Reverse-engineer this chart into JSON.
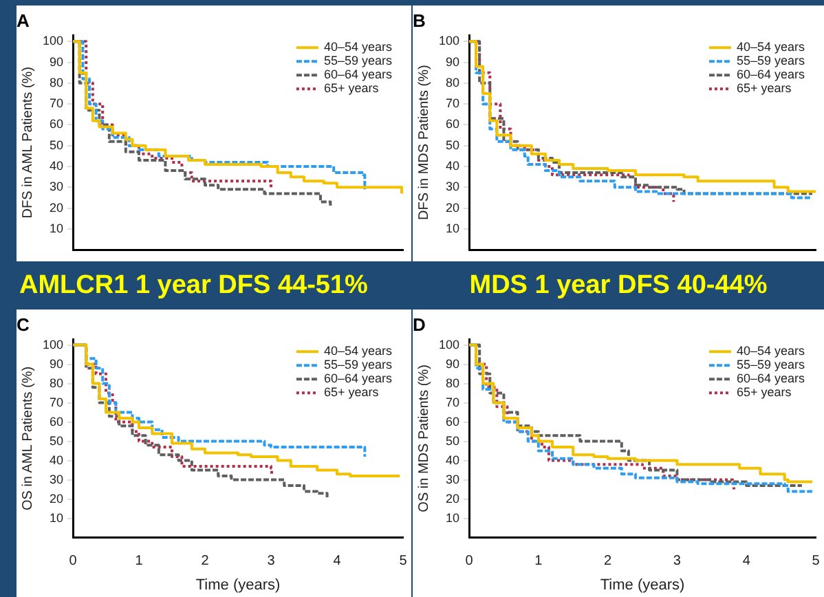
{
  "chart_data": [
    {
      "type": "step",
      "title": "A",
      "ylabel": "DFS in AML Patients (%)",
      "annotations": [
        "AMLCR1 1 year DFS 44-51%"
      ],
      "xlim": [
        0,
        5
      ],
      "xticks": [
        0,
        1,
        2,
        3,
        4,
        5
      ],
      "ylim": [
        0,
        103
      ],
      "yticks": [
        10,
        20,
        30,
        40,
        50,
        60,
        70,
        80,
        90,
        100
      ],
      "tick_labels": "y",
      "legend": "top right",
      "series": [
        {
          "name": "40–54 years",
          "color": "#f2c200",
          "line_style": "solid",
          "x": [
            0,
            0.1,
            0.2,
            0.3,
            0.4,
            0.6,
            0.8,
            0.9,
            1.1,
            1.4,
            1.75,
            2.0,
            2.85,
            3.1,
            3.3,
            3.5,
            3.8,
            4.0,
            4.97,
            4.98
          ],
          "values": [
            100,
            85,
            68,
            62,
            59,
            56,
            53,
            50,
            48,
            45,
            43,
            41,
            40,
            37,
            35,
            33,
            32,
            30,
            30,
            27
          ]
        },
        {
          "name": "55–59 years",
          "color": "#2e9df0",
          "line_style": "dashed",
          "x": [
            0,
            0.15,
            0.25,
            0.35,
            0.45,
            0.6,
            0.85,
            1.0,
            1.3,
            1.8,
            2.0,
            2.95,
            3.95,
            4.4,
            4.42
          ],
          "values": [
            100,
            82,
            70,
            62,
            58,
            54,
            50,
            48,
            45,
            43,
            42,
            40,
            37,
            36,
            29
          ]
        },
        {
          "name": "60–64 years",
          "color": "#5f5f5f",
          "line_style": "dashed",
          "x": [
            0,
            0.1,
            0.2,
            0.4,
            0.55,
            0.8,
            1.0,
            1.4,
            1.7,
            2.0,
            2.2,
            2.9,
            3.75,
            3.9
          ],
          "values": [
            100,
            80,
            67,
            60,
            52,
            47,
            43,
            38,
            34,
            31,
            29,
            27,
            23,
            21
          ]
        },
        {
          "name": "65+ years",
          "color": "#b0304a",
          "line_style": "dotted",
          "x": [
            0,
            0.2,
            0.3,
            0.45,
            0.6,
            0.8,
            1.0,
            1.2,
            1.5,
            1.65,
            1.8,
            3.0
          ],
          "values": [
            100,
            80,
            70,
            60,
            55,
            50,
            46,
            44,
            42,
            37,
            33,
            30
          ]
        }
      ]
    },
    {
      "type": "step",
      "title": "B",
      "ylabel": "DFS in MDS Patients (%)",
      "annotations": [
        "MDS 1 year DFS 40-44%"
      ],
      "xlim": [
        0,
        5
      ],
      "xticks": [
        0,
        1,
        2,
        3,
        4,
        5
      ],
      "ylim": [
        0,
        103
      ],
      "yticks": [
        10,
        20,
        30,
        40,
        50,
        60,
        70,
        80,
        90,
        100
      ],
      "tick_labels": "y",
      "legend": "top right",
      "series": [
        {
          "name": "40–54 years",
          "color": "#f2c200",
          "line_style": "solid",
          "x": [
            0,
            0.1,
            0.2,
            0.3,
            0.4,
            0.6,
            0.9,
            1.1,
            1.3,
            1.5,
            2.0,
            2.4,
            3.1,
            3.3,
            4.4,
            4.6,
            5.0
          ],
          "values": [
            100,
            88,
            75,
            62,
            55,
            50,
            46,
            43,
            41,
            39,
            38,
            36,
            35,
            33,
            30,
            28,
            28
          ]
        },
        {
          "name": "55–59 years",
          "color": "#2e9df0",
          "line_style": "dashed",
          "x": [
            0,
            0.1,
            0.2,
            0.3,
            0.4,
            0.6,
            0.8,
            0.85,
            1.1,
            1.3,
            1.6,
            2.1,
            2.4,
            2.7,
            4.6,
            4.65,
            4.95
          ],
          "values": [
            100,
            85,
            70,
            58,
            52,
            48,
            45,
            41,
            38,
            35,
            33,
            30,
            28,
            27,
            27,
            25,
            25
          ]
        },
        {
          "name": "60–64 years",
          "color": "#5f5f5f",
          "line_style": "dashed",
          "x": [
            0,
            0.15,
            0.3,
            0.5,
            0.7,
            1.0,
            1.2,
            1.3,
            2.2,
            2.4,
            2.6,
            3.0,
            3.1,
            4.95
          ],
          "values": [
            100,
            80,
            63,
            52,
            48,
            44,
            42,
            37,
            35,
            31,
            30,
            29,
            27,
            27
          ]
        },
        {
          "name": "65+ years",
          "color": "#b0304a",
          "line_style": "dotted",
          "x": [
            0,
            0.15,
            0.3,
            0.45,
            0.6,
            0.8,
            1.0,
            1.1,
            1.2,
            2.3,
            2.4,
            2.8,
            2.95
          ],
          "values": [
            100,
            85,
            70,
            58,
            50,
            48,
            43,
            40,
            36,
            35,
            30,
            27,
            23
          ]
        }
      ]
    },
    {
      "type": "step",
      "title": "C",
      "xlabel": "Time (years)",
      "ylabel": "OS in AML Patients (%)",
      "xlim": [
        0,
        5
      ],
      "xticks": [
        0,
        1,
        2,
        3,
        4,
        5
      ],
      "ylim": [
        0,
        103
      ],
      "yticks": [
        10,
        20,
        30,
        40,
        50,
        60,
        70,
        80,
        90,
        100
      ],
      "legend": "top right",
      "series": [
        {
          "name": "40–54 years",
          "color": "#f2c200",
          "line_style": "solid",
          "x": [
            0,
            0.2,
            0.3,
            0.4,
            0.5,
            0.7,
            0.9,
            1.0,
            1.2,
            1.5,
            1.8,
            2.0,
            2.5,
            2.7,
            3.1,
            3.3,
            3.7,
            4.0,
            4.2,
            4.95
          ],
          "values": [
            100,
            90,
            80,
            72,
            65,
            62,
            60,
            57,
            54,
            49,
            46,
            44,
            43,
            42,
            40,
            37,
            35,
            33,
            32,
            32
          ]
        },
        {
          "name": "55–59 years",
          "color": "#2e9df0",
          "line_style": "dashed",
          "x": [
            0,
            0.2,
            0.35,
            0.45,
            0.55,
            0.65,
            0.9,
            1.0,
            1.2,
            1.35,
            1.6,
            2.9,
            3.0,
            4.4,
            4.42
          ],
          "values": [
            100,
            93,
            88,
            80,
            70,
            65,
            62,
            60,
            56,
            52,
            50,
            48,
            47,
            47,
            42
          ]
        },
        {
          "name": "60–64 years",
          "color": "#5f5f5f",
          "line_style": "dashed",
          "x": [
            0,
            0.2,
            0.3,
            0.4,
            0.55,
            0.7,
            0.9,
            1.1,
            1.3,
            1.6,
            1.8,
            2.2,
            2.4,
            3.0,
            3.2,
            3.5,
            3.7,
            3.85
          ],
          "values": [
            100,
            88,
            78,
            70,
            63,
            58,
            53,
            48,
            43,
            40,
            35,
            32,
            30,
            30,
            27,
            24,
            23,
            20
          ]
        },
        {
          "name": "65+ years",
          "color": "#b0304a",
          "line_style": "dotted",
          "x": [
            0,
            0.2,
            0.35,
            0.5,
            0.6,
            0.65,
            0.9,
            1.0,
            1.2,
            1.5,
            1.65,
            3.0,
            3.01
          ],
          "values": [
            100,
            90,
            85,
            75,
            70,
            60,
            55,
            50,
            47,
            42,
            37,
            36,
            33
          ]
        }
      ]
    },
    {
      "type": "step",
      "title": "D",
      "xlabel": "Time (years)",
      "ylabel": "OS in MDS Patients (%)",
      "xlim": [
        0,
        5
      ],
      "xticks": [
        0,
        1,
        2,
        3,
        4,
        5
      ],
      "ylim": [
        0,
        103
      ],
      "yticks": [
        10,
        20,
        30,
        40,
        50,
        60,
        70,
        80,
        90,
        100
      ],
      "legend": "top right",
      "series": [
        {
          "name": "40–54 years",
          "color": "#f2c200",
          "line_style": "solid",
          "x": [
            0,
            0.1,
            0.2,
            0.35,
            0.5,
            0.7,
            0.9,
            1.0,
            1.2,
            1.5,
            1.8,
            2.0,
            2.4,
            3.0,
            3.9,
            4.2,
            4.55,
            4.6,
            4.95
          ],
          "values": [
            100,
            90,
            80,
            70,
            62,
            57,
            53,
            50,
            47,
            43,
            42,
            41,
            40,
            38,
            36,
            33,
            30,
            29,
            29
          ]
        },
        {
          "name": "55–59 years",
          "color": "#2e9df0",
          "line_style": "dashed",
          "x": [
            0,
            0.1,
            0.2,
            0.35,
            0.5,
            0.7,
            0.85,
            1.0,
            1.2,
            1.5,
            1.8,
            2.2,
            2.4,
            3.0,
            3.3,
            4.55,
            4.6,
            4.95
          ],
          "values": [
            100,
            88,
            77,
            70,
            60,
            55,
            50,
            45,
            41,
            38,
            36,
            33,
            31,
            29,
            28,
            27,
            24,
            24
          ]
        },
        {
          "name": "60–64 years",
          "color": "#5f5f5f",
          "line_style": "dashed",
          "x": [
            0,
            0.15,
            0.3,
            0.5,
            0.7,
            0.9,
            1.0,
            1.6,
            2.2,
            2.3,
            2.6,
            3.0,
            3.5,
            4.0,
            4.8
          ],
          "values": [
            100,
            85,
            75,
            65,
            58,
            55,
            53,
            50,
            45,
            40,
            35,
            30,
            29,
            27,
            27
          ]
        },
        {
          "name": "65+ years",
          "color": "#b0304a",
          "line_style": "dotted",
          "x": [
            0,
            0.1,
            0.25,
            0.4,
            0.55,
            0.7,
            0.9,
            1.05,
            1.15,
            1.5,
            2.5,
            2.8,
            3.0,
            3.8,
            3.82
          ],
          "values": [
            100,
            90,
            78,
            68,
            60,
            55,
            50,
            47,
            40,
            38,
            36,
            32,
            30,
            29,
            25
          ]
        }
      ]
    }
  ]
}
